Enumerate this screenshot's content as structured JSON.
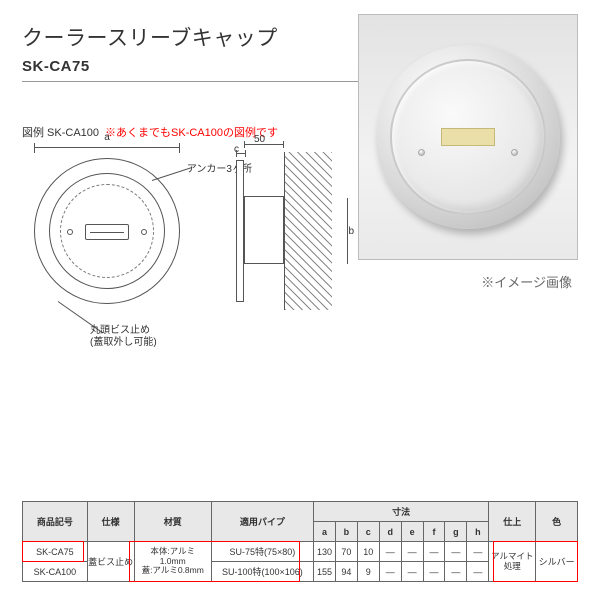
{
  "colors": {
    "note_red": "#ff0000",
    "header_bg": "#e8e8e8",
    "border": "#666666",
    "photo_border": "#bcbcbc"
  },
  "product": {
    "title": "クーラースリーブキャップ",
    "model": "SK-CA75"
  },
  "figure": {
    "label": "図例 SK-CA100",
    "note": "※あくまでもSK-CA100の図例です",
    "dim_a": "a",
    "dim_b": "b",
    "dim_c": "c",
    "dim_50": "50",
    "anchor_text": "アンカー3ヶ所",
    "screw_text": "丸頭ビス止め",
    "screw_sub": "(蓋取外し可能)"
  },
  "photo": {
    "note": "※イメージ画像"
  },
  "table": {
    "headers": {
      "code": "商品記号",
      "spec": "仕様",
      "material": "材質",
      "pipe": "適用パイプ",
      "dim_group": "寸法",
      "dims": [
        "a",
        "b",
        "c",
        "d",
        "e",
        "f",
        "g",
        "h"
      ],
      "finish": "仕上",
      "color": "色"
    },
    "rows": [
      {
        "code": "SK-CA75",
        "spec": "蓋ビス止め",
        "material_l1": "本体:アルミ",
        "material_l2": "1.0mm",
        "material_l3": "蓋:アルミ0.8mm",
        "pipe": "SU-75特(75×80)",
        "dims": [
          "130",
          "70",
          "10",
          "—",
          "—",
          "—",
          "—",
          "—"
        ],
        "finish_l1": "アルマイト",
        "finish_l2": "処理",
        "color": "シルバー"
      },
      {
        "code": "SK-CA100",
        "pipe": "SU-100特(100×106)",
        "dims": [
          "155",
          "94",
          "9",
          "—",
          "—",
          "—",
          "—",
          "—"
        ]
      }
    ]
  }
}
